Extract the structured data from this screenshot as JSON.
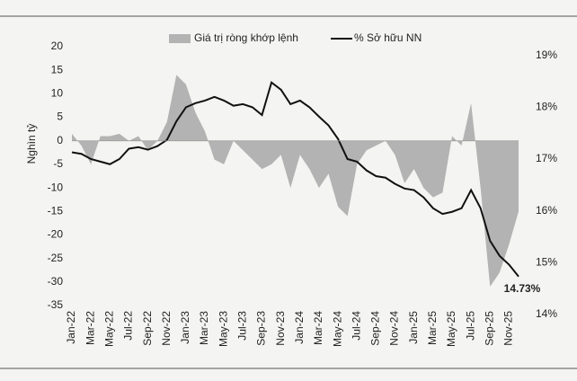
{
  "chart_data": {
    "type": "combo",
    "y_label": "Nghìn tỷ",
    "categories": [
      "Jan-22",
      null,
      "Mar-22",
      null,
      "May-22",
      null,
      "Jul-22",
      null,
      "Sep-22",
      null,
      "Nov-22",
      null,
      "Jan-23",
      null,
      "Mar-23",
      null,
      "May-23",
      null,
      "Jul-23",
      null,
      "Sep-23",
      null,
      "Nov-23",
      null,
      "Jan-24",
      null,
      "Mar-24",
      null,
      "May-24",
      null,
      "Jul-24",
      null,
      "Sep-24",
      null,
      "Nov-24",
      null,
      "Jan-25",
      null,
      "Mar-25",
      null,
      "May-25",
      null,
      "Jul-25",
      null,
      "Sep-25",
      null,
      "Nov-25",
      null
    ],
    "series": [
      {
        "name": "Giá trị ròng khớp lệnh",
        "type": "area",
        "color": "#b3b3b3",
        "values": [
          1.5,
          -1,
          -5,
          1,
          1,
          1.5,
          0,
          1,
          -2,
          0,
          4,
          14,
          12,
          6,
          2,
          -4,
          -5,
          0,
          -2,
          -4,
          -6,
          -5,
          -3,
          -10,
          -3,
          -6,
          -10,
          -7,
          -14,
          -16,
          -5,
          -2,
          -1,
          0,
          -3,
          -9,
          -6,
          -10,
          -12,
          -11,
          1,
          -1,
          8,
          -10,
          -31,
          -28,
          -22,
          -15
        ]
      },
      {
        "name": "% Sở hữu NN",
        "type": "line",
        "color": "#111111",
        "axis": "y2",
        "values": [
          17.13,
          17.1,
          17.0,
          16.95,
          16.9,
          17.0,
          17.2,
          17.23,
          17.18,
          17.25,
          17.37,
          17.73,
          18.0,
          18.08,
          18.13,
          18.2,
          18.13,
          18.03,
          18.06,
          18.0,
          17.85,
          18.48,
          18.34,
          18.06,
          18.13,
          18.0,
          17.82,
          17.65,
          17.39,
          17.0,
          16.95,
          16.78,
          16.67,
          16.64,
          16.52,
          16.43,
          16.4,
          16.26,
          16.05,
          15.94,
          15.98,
          16.05,
          16.4,
          16.05,
          15.42,
          15.13,
          14.96,
          14.73
        ],
        "value_labels": [
          null,
          null,
          null,
          null,
          null,
          null,
          null,
          null,
          null,
          null,
          null,
          null,
          null,
          null,
          null,
          null,
          null,
          null,
          null,
          null,
          null,
          null,
          null,
          null,
          null,
          null,
          null,
          null,
          null,
          null,
          null,
          null,
          null,
          null,
          null,
          null,
          null,
          null,
          null,
          null,
          null,
          null,
          null,
          null,
          null,
          null,
          null,
          "14.73%"
        ]
      }
    ],
    "ylim": [
      -35,
      20
    ],
    "yticks": [
      20,
      15,
      10,
      5,
      0,
      -5,
      -10,
      -15,
      -20,
      -25,
      -30,
      -35
    ],
    "y2lim": [
      14.17,
      19.17
    ],
    "y2ticks": [
      {
        "value": 19,
        "label": "19%"
      },
      {
        "value": 18,
        "label": "18%"
      },
      {
        "value": 17,
        "label": "17%"
      },
      {
        "value": 16,
        "label": "16%"
      },
      {
        "value": 15,
        "label": "15%"
      },
      {
        "value": 14,
        "label": "14%"
      }
    ]
  }
}
